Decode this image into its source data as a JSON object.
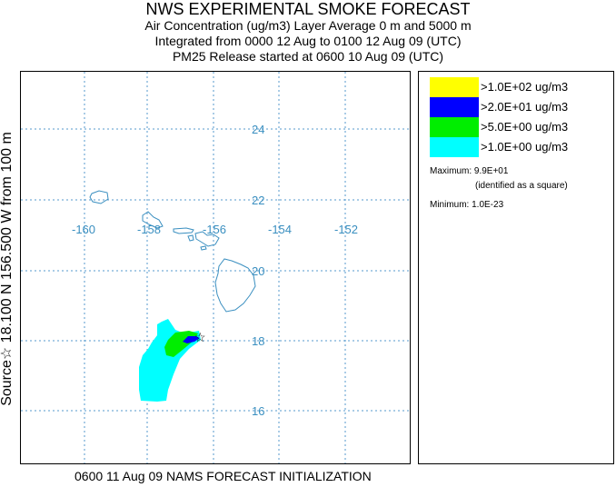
{
  "title": {
    "main": "NWS EXPERIMENTAL SMOKE FORECAST",
    "line1": "Air Concentration (ug/m3) Layer Average    0 m and  5000 m",
    "line2": "Integrated from 0000 12 Aug to 0100 12 Aug 09 (UTC)",
    "line3": "PM25 Release started at 0600 10 Aug 09 (UTC)"
  },
  "source_label": "Source☆  18.100  N 156.500  W         from  100 m",
  "footer": "0600 11 Aug 09 NAMS FORECAST INITIALIZATION",
  "map": {
    "lon_labels": [
      "-160",
      "-158",
      "-156",
      "-154",
      "-152"
    ],
    "lat_labels": [
      "24",
      "22",
      "20",
      "18",
      "16"
    ],
    "grid_color": "#5599cc",
    "label_color": "#3a8fc0"
  },
  "legend": {
    "items": [
      {
        "label": ">1.0E+02 ug/m3",
        "color": "#ffff00"
      },
      {
        "label": ">2.0E+01 ug/m3",
        "color": "#0000ff"
      },
      {
        "label": ">5.0E+00 ug/m3",
        "color": "#00ee00"
      },
      {
        "label": ">1.0E+00 ug/m3",
        "color": "#00ffff"
      }
    ],
    "maximum": "Maximum: 9.9E+01",
    "max_note": "(identified as a square)",
    "minimum": "Minimum: 1.0E-23"
  }
}
